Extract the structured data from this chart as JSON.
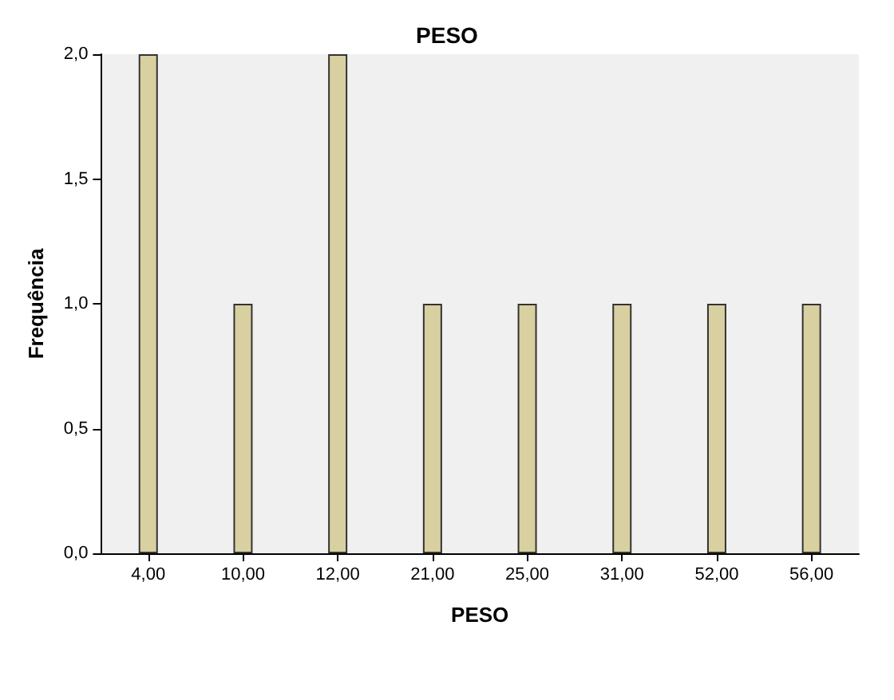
{
  "chart_data": {
    "type": "bar",
    "title": "PESO",
    "xlabel": "PESO",
    "ylabel": "Frequência",
    "categories": [
      "4,00",
      "10,00",
      "12,00",
      "21,00",
      "25,00",
      "31,00",
      "52,00",
      "56,00"
    ],
    "values": [
      2,
      1,
      2,
      1,
      1,
      1,
      1,
      1
    ],
    "color": "#d8d0a0",
    "ylim": [
      0,
      2
    ],
    "yticks": [
      {
        "value": 0,
        "label": "0,0"
      },
      {
        "value": 0.5,
        "label": "0,5"
      },
      {
        "value": 1,
        "label": "1,0"
      },
      {
        "value": 1.5,
        "label": "1,5"
      },
      {
        "value": 2,
        "label": "2,0"
      }
    ],
    "grid": false
  }
}
